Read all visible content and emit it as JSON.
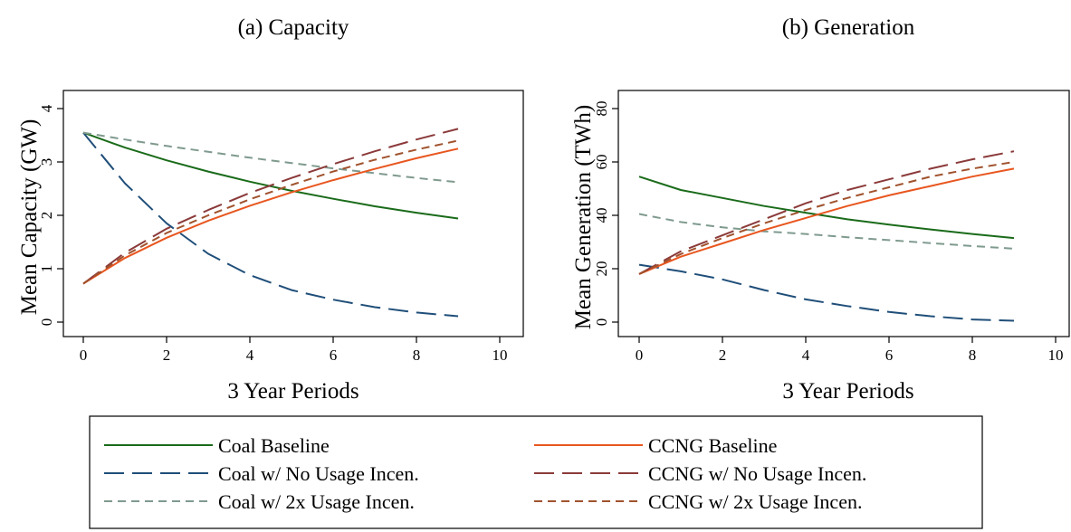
{
  "chart_data": [
    {
      "type": "line",
      "title": "(a) Capacity",
      "xlabel": "3 Year Periods",
      "ylabel": "Mean Capacity (GW)",
      "xlim": [
        0,
        10
      ],
      "ylim": [
        0,
        4
      ],
      "xticks": [
        0,
        2,
        4,
        6,
        8,
        10
      ],
      "yticks": [
        0,
        1,
        2,
        3,
        4
      ],
      "grid": false,
      "x": [
        0,
        1,
        2,
        3,
        4,
        5,
        6,
        7,
        8,
        9
      ],
      "series": [
        {
          "name": "Coal Baseline",
          "color": "#1a6b1a",
          "dash": "solid",
          "values": [
            3.55,
            3.27,
            3.03,
            2.82,
            2.63,
            2.46,
            2.31,
            2.17,
            2.05,
            1.94
          ]
        },
        {
          "name": "Coal w/ No Usage Incen.",
          "color": "#1f4e79",
          "dash": "long",
          "values": [
            3.55,
            2.6,
            1.85,
            1.28,
            0.88,
            0.6,
            0.42,
            0.28,
            0.18,
            0.11
          ]
        },
        {
          "name": "Coal w/ 2x Usage Incen.",
          "color": "#7f9a8e",
          "dash": "short",
          "values": [
            3.55,
            3.42,
            3.3,
            3.19,
            3.08,
            2.98,
            2.88,
            2.79,
            2.7,
            2.62
          ]
        },
        {
          "name": "CCNG Baseline",
          "color": "#e8561f",
          "dash": "solid",
          "values": [
            0.72,
            1.2,
            1.58,
            1.9,
            2.18,
            2.43,
            2.66,
            2.87,
            3.07,
            3.25
          ]
        },
        {
          "name": "CCNG w/ No Usage Incen.",
          "color": "#8b3a3a",
          "dash": "long",
          "values": [
            0.72,
            1.3,
            1.75,
            2.1,
            2.42,
            2.7,
            2.96,
            3.2,
            3.42,
            3.62
          ]
        },
        {
          "name": "CCNG w/ 2x Usage Incen.",
          "color": "#a0522d",
          "dash": "short",
          "values": [
            0.72,
            1.25,
            1.67,
            2.0,
            2.3,
            2.57,
            2.82,
            3.04,
            3.23,
            3.4
          ]
        }
      ]
    },
    {
      "type": "line",
      "title": "(b) Generation",
      "xlabel": "3 Year Periods",
      "ylabel": "Mean Generation (TWh)",
      "xlim": [
        0,
        10
      ],
      "ylim": [
        0,
        80
      ],
      "xticks": [
        0,
        2,
        4,
        6,
        8,
        10
      ],
      "yticks": [
        0,
        20,
        40,
        60,
        80
      ],
      "grid": false,
      "x": [
        0,
        1,
        2,
        3,
        4,
        5,
        6,
        7,
        8,
        9
      ],
      "series": [
        {
          "name": "Coal Baseline",
          "color": "#1a6b1a",
          "dash": "solid",
          "values": [
            54.5,
            49.5,
            46.5,
            43.5,
            41,
            38.5,
            36.5,
            34.7,
            33,
            31.5
          ]
        },
        {
          "name": "Coal w/ No Usage Incen.",
          "color": "#1f4e79",
          "dash": "long",
          "values": [
            21.5,
            19,
            16,
            12,
            8.5,
            6,
            3.8,
            2.2,
            1.0,
            0.5
          ]
        },
        {
          "name": "Coal w/ 2x Usage Incen.",
          "color": "#7f9a8e",
          "dash": "short",
          "values": [
            40.5,
            37.5,
            35.5,
            34,
            33,
            31.8,
            30.7,
            29.6,
            28.5,
            27.5
          ]
        },
        {
          "name": "CCNG Baseline",
          "color": "#e8561f",
          "dash": "solid",
          "values": [
            18,
            24.5,
            29.5,
            34.5,
            39,
            43.5,
            47.5,
            51,
            54.5,
            57.5
          ]
        },
        {
          "name": "CCNG w/ No Usage Incen.",
          "color": "#8b3a3a",
          "dash": "long",
          "values": [
            18,
            26.5,
            32.5,
            38.5,
            44.5,
            49.5,
            53.5,
            57.5,
            61,
            64
          ]
        },
        {
          "name": "CCNG w/ 2x Usage Incen.",
          "color": "#a0522d",
          "dash": "short",
          "values": [
            18,
            25.5,
            31.5,
            37,
            42,
            46.5,
            50.5,
            54.5,
            57.5,
            60
          ]
        }
      ]
    }
  ],
  "legend": {
    "placement": "bottom",
    "items": [
      {
        "label": "Coal Baseline",
        "color": "#1a6b1a",
        "dash": "solid"
      },
      {
        "label": "CCNG Baseline",
        "color": "#e8561f",
        "dash": "solid"
      },
      {
        "label": "Coal w/ No Usage Incen.",
        "color": "#1f4e79",
        "dash": "long"
      },
      {
        "label": "CCNG w/ No Usage Incen.",
        "color": "#8b3a3a",
        "dash": "long"
      },
      {
        "label": "Coal w/ 2x Usage Incen.",
        "color": "#7f9a8e",
        "dash": "short"
      },
      {
        "label": "CCNG w/ 2x Usage Incen.",
        "color": "#a0522d",
        "dash": "short"
      }
    ]
  }
}
